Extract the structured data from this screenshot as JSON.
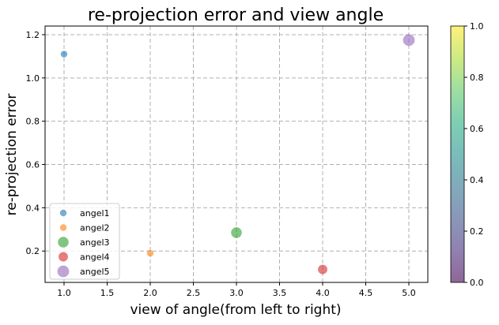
{
  "chart_data": {
    "type": "scatter",
    "title": "re-projection error and view angle",
    "xlabel": "view of angle(from left to right)",
    "ylabel": "re-projection error",
    "xlim": [
      0.78,
      5.22
    ],
    "ylim": [
      0.055,
      1.24
    ],
    "xticks": [
      1.0,
      1.5,
      2.0,
      2.5,
      3.0,
      3.5,
      4.0,
      4.5,
      5.0
    ],
    "xtick_labels": [
      "1.0",
      "1.5",
      "2.0",
      "2.5",
      "3.0",
      "3.5",
      "4.0",
      "4.5",
      "5.0"
    ],
    "yticks": [
      0.2,
      0.4,
      0.6,
      0.8,
      1.0,
      1.2
    ],
    "ytick_labels": [
      "0.2",
      "0.4",
      "0.6",
      "0.8",
      "1.0",
      "1.2"
    ],
    "grid": true,
    "legend_position": "lower-left",
    "series": [
      {
        "name": "angel1",
        "x": [
          1.0
        ],
        "y": [
          1.11
        ],
        "color": "#1f77b4",
        "relative_size": 1
      },
      {
        "name": "angel2",
        "x": [
          2.0
        ],
        "y": [
          0.19
        ],
        "color": "#ff7f0e",
        "relative_size": 1
      },
      {
        "name": "angel3",
        "x": [
          3.0
        ],
        "y": [
          0.285
        ],
        "color": "#2ca02c",
        "relative_size": 2.6
      },
      {
        "name": "angel4",
        "x": [
          4.0
        ],
        "y": [
          0.115
        ],
        "color": "#d62728",
        "relative_size": 2
      },
      {
        "name": "angel5",
        "x": [
          5.0
        ],
        "y": [
          1.175
        ],
        "color": "#9467bd",
        "relative_size": 3.1
      }
    ],
    "marker_alpha": 0.6,
    "colorbar": {
      "min": 0.0,
      "max": 1.0,
      "ticks": [
        0.0,
        0.2,
        0.4,
        0.6,
        0.8,
        1.0
      ],
      "tick_labels": [
        "0.0",
        "0.2",
        "0.4",
        "0.6",
        "0.8",
        "1.0"
      ],
      "colormap": "viridis",
      "alpha": 0.6
    }
  }
}
